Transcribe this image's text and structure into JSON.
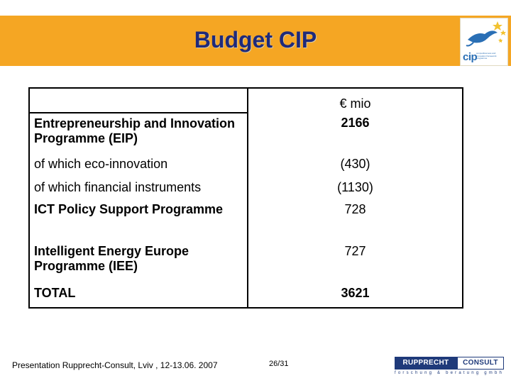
{
  "slide": {
    "title": "Budget CIP",
    "logo": {
      "letters": "cip",
      "small_text": "competitiveness and innovation framework programme",
      "icon": "leaping-figure-stars-icon"
    },
    "table": {
      "header_value": "€ mio",
      "rows": [
        {
          "label": "Entrepreneurship and Innovation Programme (EIP)",
          "value": "2166",
          "bold": true
        },
        {
          "label": "of which eco-innovation",
          "value": "(430)",
          "bold": false
        },
        {
          "label": "of which financial instruments",
          "value": "(1130)",
          "bold": false
        },
        {
          "label": "ICT Policy Support Programme",
          "value": "728",
          "bold_label": true
        },
        {
          "label": "Intelligent Energy Europe Programme (IEE)",
          "value": "727",
          "bold_label": true
        },
        {
          "label": "TOTAL",
          "value": "3621",
          "bold": true
        }
      ]
    },
    "footer": {
      "presentation": "Presentation Rupprecht-Consult, Lviv , 12-13.06. 2007",
      "page": "26/31",
      "company_logo": {
        "name_left": "RUPPRECHT",
        "name_right": "CONSULT",
        "tagline": "forschung & beratung gmbh"
      }
    }
  }
}
